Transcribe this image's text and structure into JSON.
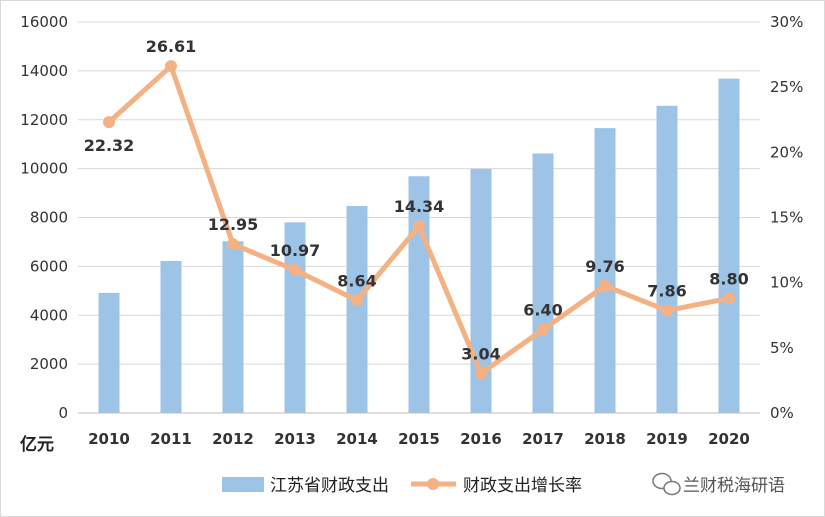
{
  "chart_data": {
    "type": "bar+line",
    "categories": [
      "2010",
      "2011",
      "2012",
      "2013",
      "2014",
      "2015",
      "2016",
      "2017",
      "2018",
      "2019",
      "2020"
    ],
    "series": [
      {
        "name": "江苏省财政支出",
        "type": "bar",
        "axis": "left",
        "values": [
          4914,
          6222,
          7028,
          7798,
          8472,
          9688,
          9990,
          10620,
          11657,
          12573,
          13681
        ]
      },
      {
        "name": "财政支出增长率",
        "type": "line",
        "axis": "right",
        "values": [
          22.32,
          26.61,
          12.95,
          10.97,
          8.64,
          14.34,
          3.04,
          6.4,
          9.76,
          7.86,
          8.8
        ],
        "labels": [
          "22.32",
          "26.61",
          "12.95",
          "10.97",
          "8.64",
          "14.34",
          "3.04",
          "6.40",
          "9.76",
          "7.86",
          "8.80"
        ]
      }
    ],
    "ylim_left": [
      0,
      16000
    ],
    "yticks_left": [
      "0",
      "2000",
      "4000",
      "6000",
      "8000",
      "10000",
      "12000",
      "14000",
      "16000"
    ],
    "ylim_right": [
      0,
      30
    ],
    "yticks_right": [
      "0%",
      "5%",
      "10%",
      "15%",
      "20%",
      "25%",
      "30%"
    ],
    "ylabel": "亿元",
    "grid": true,
    "legend": "bottom",
    "colors": {
      "bar": "#9dc3e6",
      "line": "#f4b183",
      "grid": "#d9d9d9",
      "text": "#333333"
    }
  },
  "watermark": "兰财税海研语"
}
